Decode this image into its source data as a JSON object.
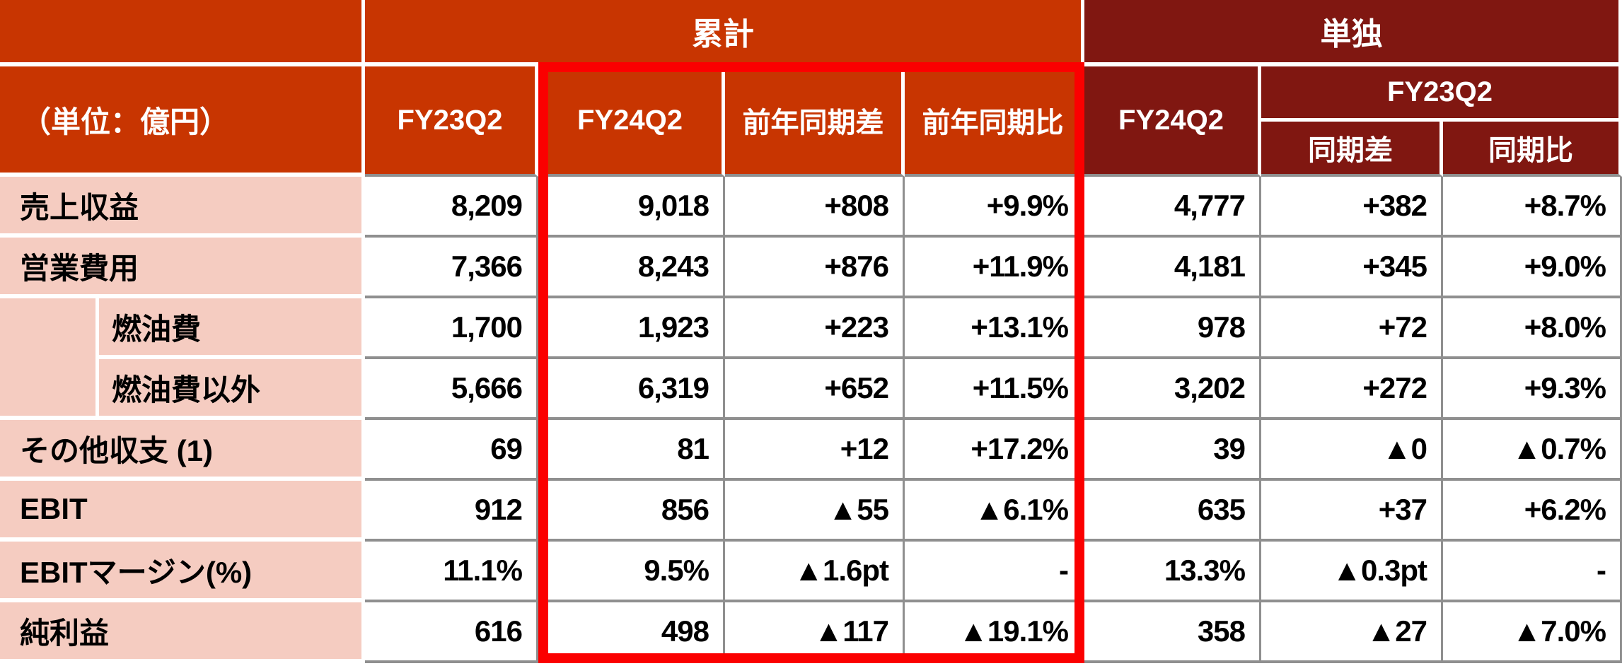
{
  "chart_data": {
    "type": "table",
    "unit_label": "（単位：億円）",
    "groups": [
      {
        "label": "累計",
        "columns": [
          "FY23Q2",
          "FY24Q2",
          "前年同期差",
          "前年同期比"
        ]
      },
      {
        "label": "単独",
        "columns": [
          "FY24Q2",
          "同期差",
          "同期比"
        ],
        "subgroup": "FY23Q2"
      }
    ],
    "columns": [
      "FY23Q2",
      "FY24Q2",
      "前年同期差",
      "前年同期比",
      "FY24Q2",
      "同期差",
      "同期比"
    ],
    "standalone_subgroup": "FY23Q2",
    "rows": [
      {
        "label": "売上収益",
        "indent": false,
        "values": [
          "8,209",
          "9,018",
          "+808",
          "+9.9%",
          "4,777",
          "+382",
          "+8.7%"
        ]
      },
      {
        "label": "営業費用",
        "indent": false,
        "values": [
          "7,366",
          "8,243",
          "+876",
          "+11.9%",
          "4,181",
          "+345",
          "+9.0%"
        ]
      },
      {
        "label": "燃油費",
        "indent": true,
        "values": [
          "1,700",
          "1,923",
          "+223",
          "+13.1%",
          "978",
          "+72",
          "+8.0%"
        ]
      },
      {
        "label": "燃油費以外",
        "indent": true,
        "values": [
          "5,666",
          "6,319",
          "+652",
          "+11.5%",
          "3,202",
          "+272",
          "+9.3%"
        ]
      },
      {
        "label": "その他収支 (1)",
        "indent": false,
        "values": [
          "69",
          "81",
          "+12",
          "+17.2%",
          "39",
          "▲0",
          "▲0.7%"
        ]
      },
      {
        "label": "EBIT",
        "indent": false,
        "values": [
          "912",
          "856",
          "▲55",
          "▲6.1%",
          "635",
          "+37",
          "+6.2%"
        ]
      },
      {
        "label": "EBITマージン(%)",
        "indent": false,
        "values": [
          "11.1%",
          "9.5%",
          "▲1.6pt",
          "-",
          "13.3%",
          "▲0.3pt",
          "-"
        ]
      },
      {
        "label": "純利益",
        "indent": false,
        "values": [
          "616",
          "498",
          "▲117",
          "▲19.1%",
          "358",
          "▲27",
          "▲7.0%"
        ]
      }
    ],
    "negative_marker": "▲",
    "highlight_note": "累計のFY24Q2・前年同期差・前年同期比の3列が太い赤枠で強調されている",
    "legend_position": "none",
    "grid": true
  },
  "colors": {
    "header_orange": "#C83501",
    "header_dark_red": "#801711",
    "row_label_pink": "#F5CCC1",
    "grid_line_gray": "#8F8F8F",
    "highlight_red": "#FB0000",
    "header_text": "#FFFFFF",
    "value_text": "#000000"
  }
}
